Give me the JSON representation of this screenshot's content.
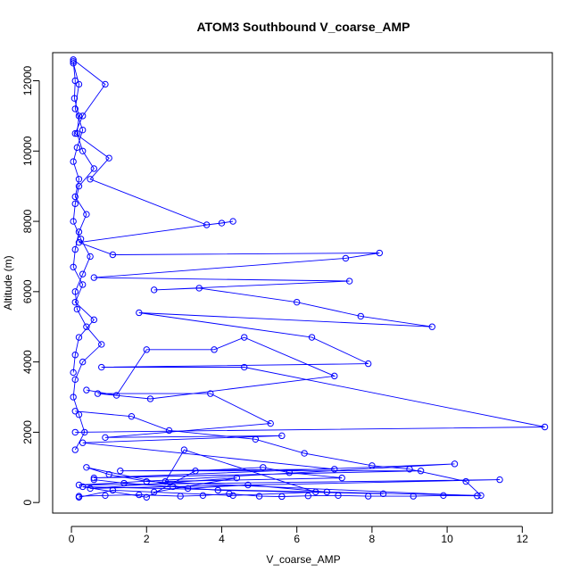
{
  "chart_data": {
    "type": "line",
    "title": "ATOM3 Southbound V_coarse_AMP",
    "xlabel": "V_coarse_AMP",
    "ylabel": "Altitude (m)",
    "xlim": [
      -0.5,
      12.8
    ],
    "ylim": [
      -300,
      12800
    ],
    "xticks": [
      0,
      2,
      4,
      6,
      8,
      10,
      12
    ],
    "yticks": [
      0,
      2000,
      4000,
      6000,
      8000,
      10000,
      12000
    ],
    "grid": false,
    "marker": "open-circle",
    "line_color": "#0000ff",
    "series": [
      {
        "x": [
          0.05,
          0.1,
          0.08,
          0.2,
          0.15,
          0.3,
          0.6,
          0.2,
          0.1,
          0.05,
          0.25,
          0.5,
          0.3,
          0.1,
          0.15,
          0.4,
          0.8,
          0.3,
          0.1,
          0.05,
          0.2,
          0.35,
          0.1
        ],
        "y": [
          12550,
          12000,
          11500,
          11000,
          10500,
          10000,
          9500,
          9000,
          8500,
          8000,
          7500,
          7000,
          6500,
          6000,
          5500,
          5000,
          4500,
          4000,
          3500,
          3000,
          2500,
          2000,
          1500
        ]
      },
      {
        "x": [
          0.05,
          0.2,
          0.1,
          0.3,
          0.15,
          0.05,
          0.2,
          0.1,
          0.4,
          0.2,
          0.1,
          0.05,
          0.3,
          0.1,
          0.6,
          0.2,
          0.1,
          0.05
        ],
        "y": [
          12500,
          11900,
          11200,
          10600,
          10100,
          9700,
          9200,
          8700,
          8200,
          7700,
          7200,
          6700,
          6200,
          5700,
          5200,
          4700,
          4200,
          3700
        ]
      },
      {
        "x": [
          0.05,
          0.9,
          0.3,
          0.1,
          1.0,
          0.5,
          3.6,
          4.0,
          4.3,
          0.2,
          1.1,
          8.2,
          7.3,
          0.6,
          7.4,
          2.2,
          3.4,
          6.0,
          7.7,
          9.6,
          1.8,
          6.4,
          7.9,
          0.8,
          4.6,
          12.6,
          0.1
        ],
        "y": [
          12600,
          11900,
          11000,
          10500,
          9800,
          9200,
          7900,
          7950,
          8000,
          7400,
          7050,
          7100,
          6950,
          6400,
          6300,
          6050,
          6100,
          5700,
          5300,
          5000,
          5400,
          4700,
          3950,
          3850,
          3850,
          2150,
          2000
        ]
      },
      {
        "x": [
          0.4,
          1.2,
          2.0,
          3.8,
          4.6,
          7.0,
          2.1,
          0.7,
          3.7,
          5.3,
          0.9,
          5.6,
          0.3,
          7.0,
          1.3,
          9.3,
          0.6,
          10.2,
          0.2,
          11.4,
          0.5,
          4.4,
          2.2
        ],
        "y": [
          3200,
          3050,
          4350,
          4350,
          4700,
          3600,
          2950,
          3100,
          3100,
          2250,
          1850,
          1900,
          1700,
          950,
          900,
          900,
          700,
          1100,
          500,
          650,
          400,
          700,
          300
        ]
      },
      {
        "x": [
          0.1,
          1.6,
          2.6,
          4.9,
          6.2,
          8.0,
          9.0,
          10.5,
          10.9,
          0.3,
          2.0,
          3.3,
          5.1,
          5.8,
          7.2,
          2.5,
          3.0,
          6.5,
          4.3,
          1.1,
          0.2
        ],
        "y": [
          2600,
          2450,
          2050,
          1800,
          1400,
          1050,
          950,
          600,
          200,
          450,
          150,
          900,
          1000,
          850,
          700,
          600,
          1500,
          300,
          200,
          350,
          150
        ]
      },
      {
        "x": [
          0.2,
          0.9,
          1.8,
          2.9,
          3.5,
          4.2,
          5.0,
          5.6,
          6.3,
          7.1,
          7.9,
          9.1,
          9.9,
          10.8,
          2.0,
          1.0,
          0.4,
          3.1,
          4.7,
          6.8,
          8.3,
          3.9,
          2.7,
          1.4,
          0.6
        ],
        "y": [
          180,
          200,
          220,
          180,
          200,
          250,
          180,
          170,
          190,
          200,
          180,
          180,
          200,
          190,
          600,
          800,
          1000,
          400,
          500,
          300,
          250,
          350,
          450,
          550,
          650
        ]
      }
    ]
  }
}
